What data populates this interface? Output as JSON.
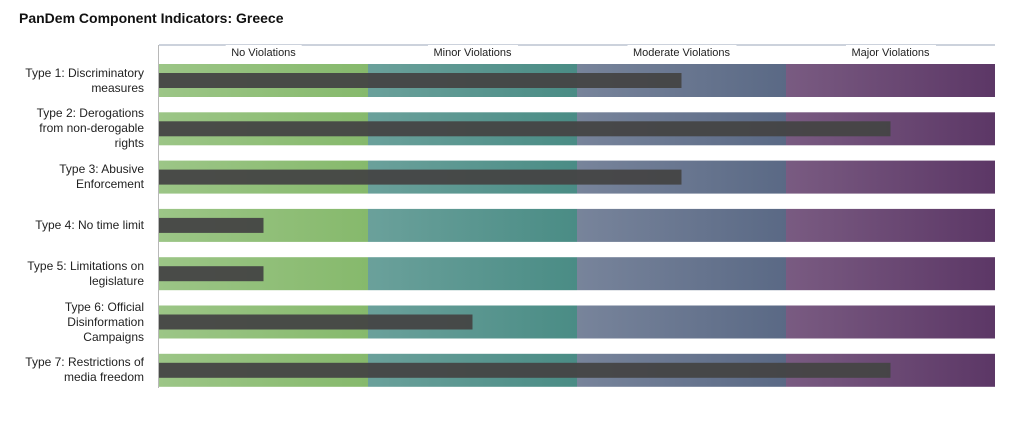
{
  "chart_data": {
    "type": "bar",
    "orientation": "horizontal",
    "title": "PanDem Component Indicators: Greece",
    "bands": [
      {
        "label": "No Violations",
        "from": 0,
        "to": 1,
        "color": "#86b96c"
      },
      {
        "label": "Minor Violations",
        "from": 1,
        "to": 2,
        "color": "#4a8c85"
      },
      {
        "label": "Moderate Violations",
        "from": 2,
        "to": 3,
        "color": "#5a6985"
      },
      {
        "label": "Major Violations",
        "from": 3,
        "to": 4,
        "color": "#5c3766"
      }
    ],
    "xlim": [
      0,
      4
    ],
    "categories": [
      [
        "Type 1: Discriminatory",
        "measures"
      ],
      [
        "Type 2: Derogations",
        "from non-derogable",
        "rights"
      ],
      [
        "Type 3: Abusive",
        "Enforcement"
      ],
      [
        "Type 4: No time limit"
      ],
      [
        "Type 5: Limitations on",
        "legislature"
      ],
      [
        "Type 6: Official",
        "Disinformation",
        "Campaigns"
      ],
      [
        "Type 7: Restrictions of",
        "media freedom"
      ]
    ],
    "values": [
      2.5,
      3.5,
      2.5,
      0.5,
      0.5,
      1.5,
      3.5
    ],
    "bar_color": "#444444"
  }
}
